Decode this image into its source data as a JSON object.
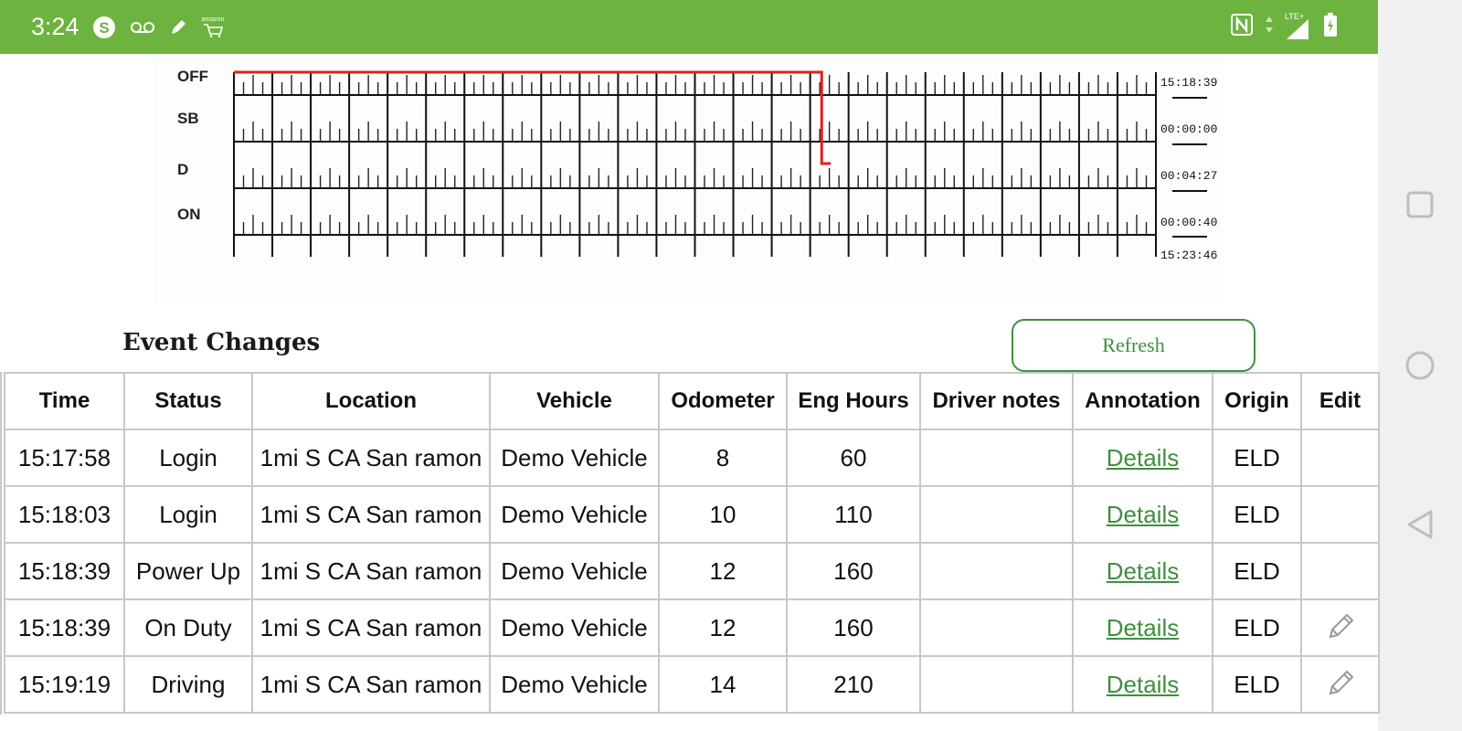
{
  "status_bar": {
    "time": "3:24",
    "left_icons": [
      "skype-icon",
      "voicemail-icon",
      "pencil-icon",
      "amazon-icon"
    ],
    "amazon_text": "amazon",
    "right_icons": [
      "nfc-icon",
      "data-arrows-icon",
      "signal-icon",
      "battery-charging-icon"
    ],
    "network": "LTE+"
  },
  "graph": {
    "rows": [
      "OFF",
      "SB",
      "D",
      "ON"
    ],
    "totals": [
      "15:18:39",
      "00:00:00",
      "00:04:27",
      "00:00:40"
    ],
    "grand_total": "15:23:46",
    "line_color": "#e02020"
  },
  "section": {
    "title": "Event Changes",
    "refresh_label": "Refresh"
  },
  "table": {
    "columns": [
      "Time",
      "Status",
      "Location",
      "Vehicle",
      "Odometer",
      "Eng Hours",
      "Driver notes",
      "Annotation",
      "Origin",
      "Edit"
    ],
    "rows": [
      {
        "time": "15:17:58",
        "status": "Login",
        "location": "1mi S CA San ramon",
        "vehicle": "Demo Vehicle",
        "odometer": "8",
        "eng_hours": "60",
        "driver_notes": "",
        "annotation": "Details",
        "origin": "ELD",
        "editable": false
      },
      {
        "time": "15:18:03",
        "status": "Login",
        "location": "1mi S CA San ramon",
        "vehicle": "Demo Vehicle",
        "odometer": "10",
        "eng_hours": "110",
        "driver_notes": "",
        "annotation": "Details",
        "origin": "ELD",
        "editable": false
      },
      {
        "time": "15:18:39",
        "status": "Power Up",
        "location": "1mi S CA San ramon",
        "vehicle": "Demo Vehicle",
        "odometer": "12",
        "eng_hours": "160",
        "driver_notes": "",
        "annotation": "Details",
        "origin": "ELD",
        "editable": false
      },
      {
        "time": "15:18:39",
        "status": "On Duty",
        "location": "1mi S CA San ramon",
        "vehicle": "Demo Vehicle",
        "odometer": "12",
        "eng_hours": "160",
        "driver_notes": "",
        "annotation": "Details",
        "origin": "ELD",
        "editable": true
      },
      {
        "time": "15:19:19",
        "status": "Driving",
        "location": "1mi S CA San ramon",
        "vehicle": "Demo Vehicle",
        "odometer": "14",
        "eng_hours": "210",
        "driver_notes": "",
        "annotation": "Details",
        "origin": "ELD",
        "editable": true
      }
    ]
  },
  "nav_bar": {
    "buttons": [
      "recents-square-icon",
      "home-circle-icon",
      "back-triangle-icon"
    ]
  },
  "colors": {
    "status_bar": "#6db33f",
    "accent_green": "#3f8f3f",
    "grid_line": "#c8c8c8"
  }
}
